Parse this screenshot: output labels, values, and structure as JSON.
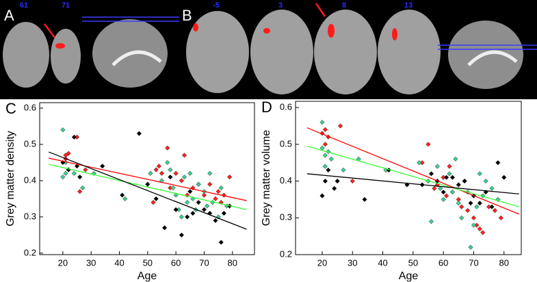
{
  "brain_panel": {
    "labels": [
      "A",
      "B"
    ],
    "slices": [
      "61",
      "71",
      "-5",
      "3",
      "8",
      "13"
    ]
  },
  "chart_data": [
    {
      "type": "scatter",
      "panel_label": "C",
      "xlabel": "Age",
      "ylabel": "Grey matter density",
      "xlim": [
        11.8,
        87.8
      ],
      "xticks": [
        20,
        30,
        40,
        50,
        60,
        70,
        80
      ],
      "ylim": [
        0.196,
        0.615
      ],
      "yticks": [
        0.2,
        0.3,
        0.4,
        0.5,
        0.6
      ],
      "series": [
        {
          "color": "#ff2020",
          "x": [
            21,
            22,
            21,
            25,
            28,
            26,
            53,
            54,
            55,
            57,
            58,
            60,
            62,
            63,
            64,
            66,
            68,
            70,
            72,
            74,
            75,
            76,
            77,
            79,
            52
          ],
          "values": [
            0.47,
            0.475,
            0.46,
            0.52,
            0.43,
            0.37,
            0.43,
            0.44,
            0.42,
            0.49,
            0.38,
            0.42,
            0.4,
            0.47,
            0.36,
            0.38,
            0.39,
            0.36,
            0.39,
            0.35,
            0.37,
            0.34,
            0.36,
            0.41,
            0.34
          ]
        },
        {
          "color": "#3fcf8f",
          "x": [
            20,
            20,
            21,
            21,
            22,
            24,
            27,
            31,
            42,
            51,
            55,
            57,
            58,
            59,
            60,
            61,
            63,
            64,
            65,
            66,
            67,
            68,
            70,
            71,
            72,
            73,
            75,
            76,
            78,
            62
          ],
          "values": [
            0.54,
            0.41,
            0.42,
            0.45,
            0.43,
            0.42,
            0.38,
            0.42,
            0.35,
            0.42,
            0.4,
            0.45,
            0.43,
            0.38,
            0.36,
            0.32,
            0.41,
            0.34,
            0.42,
            0.35,
            0.32,
            0.39,
            0.37,
            0.33,
            0.42,
            0.34,
            0.3,
            0.38,
            0.33,
            0.3
          ]
        },
        {
          "color": "#000000",
          "x": [
            20,
            22,
            24,
            26,
            25,
            34,
            41,
            47,
            50,
            53,
            56,
            58,
            60,
            62,
            64,
            66,
            68,
            70,
            72,
            74,
            76,
            77,
            79,
            65
          ],
          "values": [
            0.45,
            0.43,
            0.52,
            0.41,
            0.44,
            0.44,
            0.36,
            0.53,
            0.39,
            0.35,
            0.27,
            0.41,
            0.32,
            0.25,
            0.3,
            0.31,
            0.34,
            0.32,
            0.31,
            0.29,
            0.23,
            0.31,
            0.33,
            0.37
          ]
        }
      ],
      "fit_lines": [
        {
          "color": "#ff0000",
          "x": [
            15,
            85
          ],
          "values": [
            0.462,
            0.345
          ]
        },
        {
          "color": "#33ff33",
          "x": [
            15,
            85
          ],
          "values": [
            0.445,
            0.32
          ]
        },
        {
          "color": "#000000",
          "x": [
            15,
            85
          ],
          "values": [
            0.479,
            0.266
          ]
        }
      ]
    },
    {
      "type": "scatter",
      "panel_label": "D",
      "xlabel": "Age",
      "ylabel": "Grey matter volume",
      "xlim": [
        11.2,
        85.7
      ],
      "xticks": [
        20,
        30,
        40,
        50,
        60,
        70,
        80
      ],
      "ylim": [
        0.2,
        0.617
      ],
      "yticks": [
        0.2,
        0.3,
        0.4,
        0.5,
        0.6
      ],
      "series": [
        {
          "color": "#ff2020",
          "x": [
            20,
            21,
            22,
            21,
            26,
            30,
            53,
            55,
            57,
            58,
            60,
            61,
            63,
            65,
            66,
            68,
            70,
            71,
            72,
            73,
            75,
            77,
            79,
            62
          ],
          "values": [
            0.53,
            0.54,
            0.52,
            0.5,
            0.55,
            0.4,
            0.45,
            0.5,
            0.38,
            0.39,
            0.41,
            0.36,
            0.37,
            0.35,
            0.33,
            0.32,
            0.3,
            0.28,
            0.27,
            0.26,
            0.33,
            0.32,
            0.3,
            0.44
          ]
        },
        {
          "color": "#3fcf8f",
          "x": [
            20,
            20,
            21,
            21,
            22,
            23,
            27,
            32,
            41,
            52,
            55,
            56,
            58,
            59,
            60,
            62,
            63,
            64,
            65,
            66,
            67,
            68,
            69,
            70,
            71,
            72,
            73,
            74,
            76,
            78
          ],
          "values": [
            0.49,
            0.56,
            0.44,
            0.47,
            0.48,
            0.46,
            0.43,
            0.46,
            0.43,
            0.45,
            0.4,
            0.29,
            0.44,
            0.38,
            0.35,
            0.42,
            0.37,
            0.46,
            0.34,
            0.3,
            0.4,
            0.37,
            0.22,
            0.28,
            0.33,
            0.42,
            0.36,
            0.4,
            0.38,
            0.35
          ]
        },
        {
          "color": "#000000",
          "x": [
            20,
            21,
            22,
            24,
            25,
            34,
            42,
            48,
            53,
            56,
            58,
            60,
            61,
            63,
            65,
            67,
            69,
            70,
            72,
            74,
            76,
            78,
            80
          ],
          "values": [
            0.36,
            0.4,
            0.43,
            0.38,
            0.4,
            0.35,
            0.43,
            0.39,
            0.39,
            0.42,
            0.4,
            0.37,
            0.41,
            0.41,
            0.39,
            0.4,
            0.34,
            0.36,
            0.34,
            0.37,
            0.33,
            0.45,
            0.41
          ]
        }
      ],
      "fit_lines": [
        {
          "color": "#ff0000",
          "x": [
            15,
            85
          ],
          "values": [
            0.545,
            0.31
          ]
        },
        {
          "color": "#33ff33",
          "x": [
            15,
            85
          ],
          "values": [
            0.495,
            0.33
          ]
        },
        {
          "color": "#000000",
          "x": [
            15,
            85
          ],
          "values": [
            0.42,
            0.365
          ]
        }
      ]
    }
  ]
}
